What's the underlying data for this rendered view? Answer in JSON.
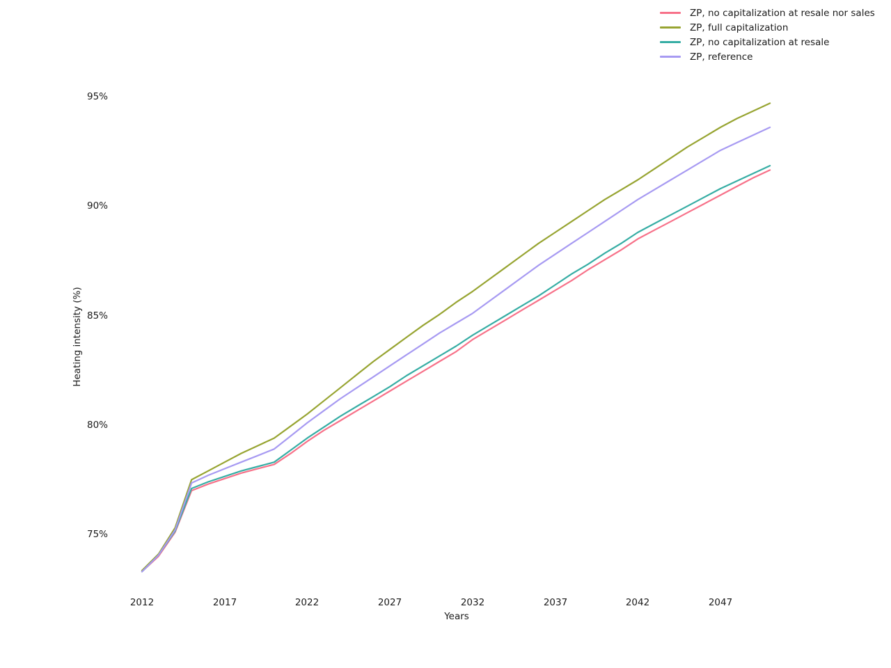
{
  "chart_data": {
    "type": "line",
    "title": "",
    "xlabel": "Years",
    "ylabel": "Heating intensity (%)",
    "grid": false,
    "background": "#ffffff",
    "legend_position": "upper right",
    "x_tick_labels": [
      "2012",
      "2017",
      "2022",
      "2027",
      "2032",
      "2037",
      "2042",
      "2047"
    ],
    "y_tick_labels": [
      "95%",
      "90%",
      "85%",
      "80%",
      "75%"
    ],
    "y_tick_values": [
      95,
      90,
      85,
      80,
      75
    ],
    "xlim": [
      2011.5,
      2050.5
    ],
    "ylim_percent": [
      72.8,
      95.8
    ],
    "x": [
      2012,
      2013,
      2014,
      2015,
      2016,
      2017,
      2018,
      2019,
      2020,
      2021,
      2022,
      2023,
      2024,
      2025,
      2026,
      2027,
      2028,
      2029,
      2030,
      2031,
      2032,
      2033,
      2034,
      2035,
      2036,
      2037,
      2038,
      2039,
      2040,
      2041,
      2042,
      2043,
      2044,
      2045,
      2046,
      2047,
      2048,
      2049,
      2050
    ],
    "series": [
      {
        "id": "zp-no-capitalization-at-resale-nor-sales",
        "name": "ZP, no capitalization at resale nor sales",
        "color": "#f77189",
        "values": [
          73.3,
          74.0,
          75.1,
          77.0,
          77.3,
          77.55,
          77.8,
          78.0,
          78.2,
          78.7,
          79.25,
          79.75,
          80.2,
          80.65,
          81.1,
          81.55,
          82.0,
          82.45,
          82.9,
          83.35,
          83.9,
          84.35,
          84.8,
          85.25,
          85.7,
          86.15,
          86.6,
          87.1,
          87.55,
          88.0,
          88.5,
          88.9,
          89.3,
          89.7,
          90.1,
          90.5,
          90.9,
          91.3,
          91.65
        ]
      },
      {
        "id": "zp-full-capitalization",
        "name": "ZP, full capitalization",
        "color": "#97a431",
        "values": [
          73.35,
          74.1,
          75.3,
          77.5,
          77.9,
          78.3,
          78.7,
          79.05,
          79.4,
          79.95,
          80.5,
          81.1,
          81.7,
          82.3,
          82.9,
          83.45,
          84.0,
          84.55,
          85.05,
          85.6,
          86.1,
          86.65,
          87.2,
          87.75,
          88.3,
          88.8,
          89.3,
          89.8,
          90.3,
          90.75,
          91.2,
          91.7,
          92.2,
          92.7,
          93.15,
          93.6,
          94.0,
          94.35,
          94.7
        ]
      },
      {
        "id": "zp-no-capitalization-at-resale",
        "name": "ZP, no capitalization at resale",
        "color": "#36ada4",
        "values": [
          73.3,
          74.05,
          75.15,
          77.1,
          77.4,
          77.65,
          77.9,
          78.1,
          78.3,
          78.85,
          79.4,
          79.9,
          80.4,
          80.85,
          81.3,
          81.75,
          82.25,
          82.7,
          83.15,
          83.6,
          84.1,
          84.55,
          85.0,
          85.45,
          85.9,
          86.4,
          86.9,
          87.35,
          87.85,
          88.3,
          88.8,
          89.2,
          89.6,
          90.0,
          90.4,
          90.8,
          91.15,
          91.5,
          91.85
        ]
      },
      {
        "id": "zp-reference",
        "name": "ZP, reference",
        "color": "#a79af2",
        "values": [
          73.3,
          74.05,
          75.2,
          77.35,
          77.7,
          78.0,
          78.3,
          78.6,
          78.9,
          79.5,
          80.1,
          80.65,
          81.2,
          81.7,
          82.2,
          82.7,
          83.2,
          83.7,
          84.2,
          84.65,
          85.1,
          85.65,
          86.2,
          86.75,
          87.3,
          87.8,
          88.3,
          88.8,
          89.3,
          89.8,
          90.3,
          90.75,
          91.2,
          91.65,
          92.1,
          92.55,
          92.9,
          93.25,
          93.6
        ]
      }
    ]
  }
}
